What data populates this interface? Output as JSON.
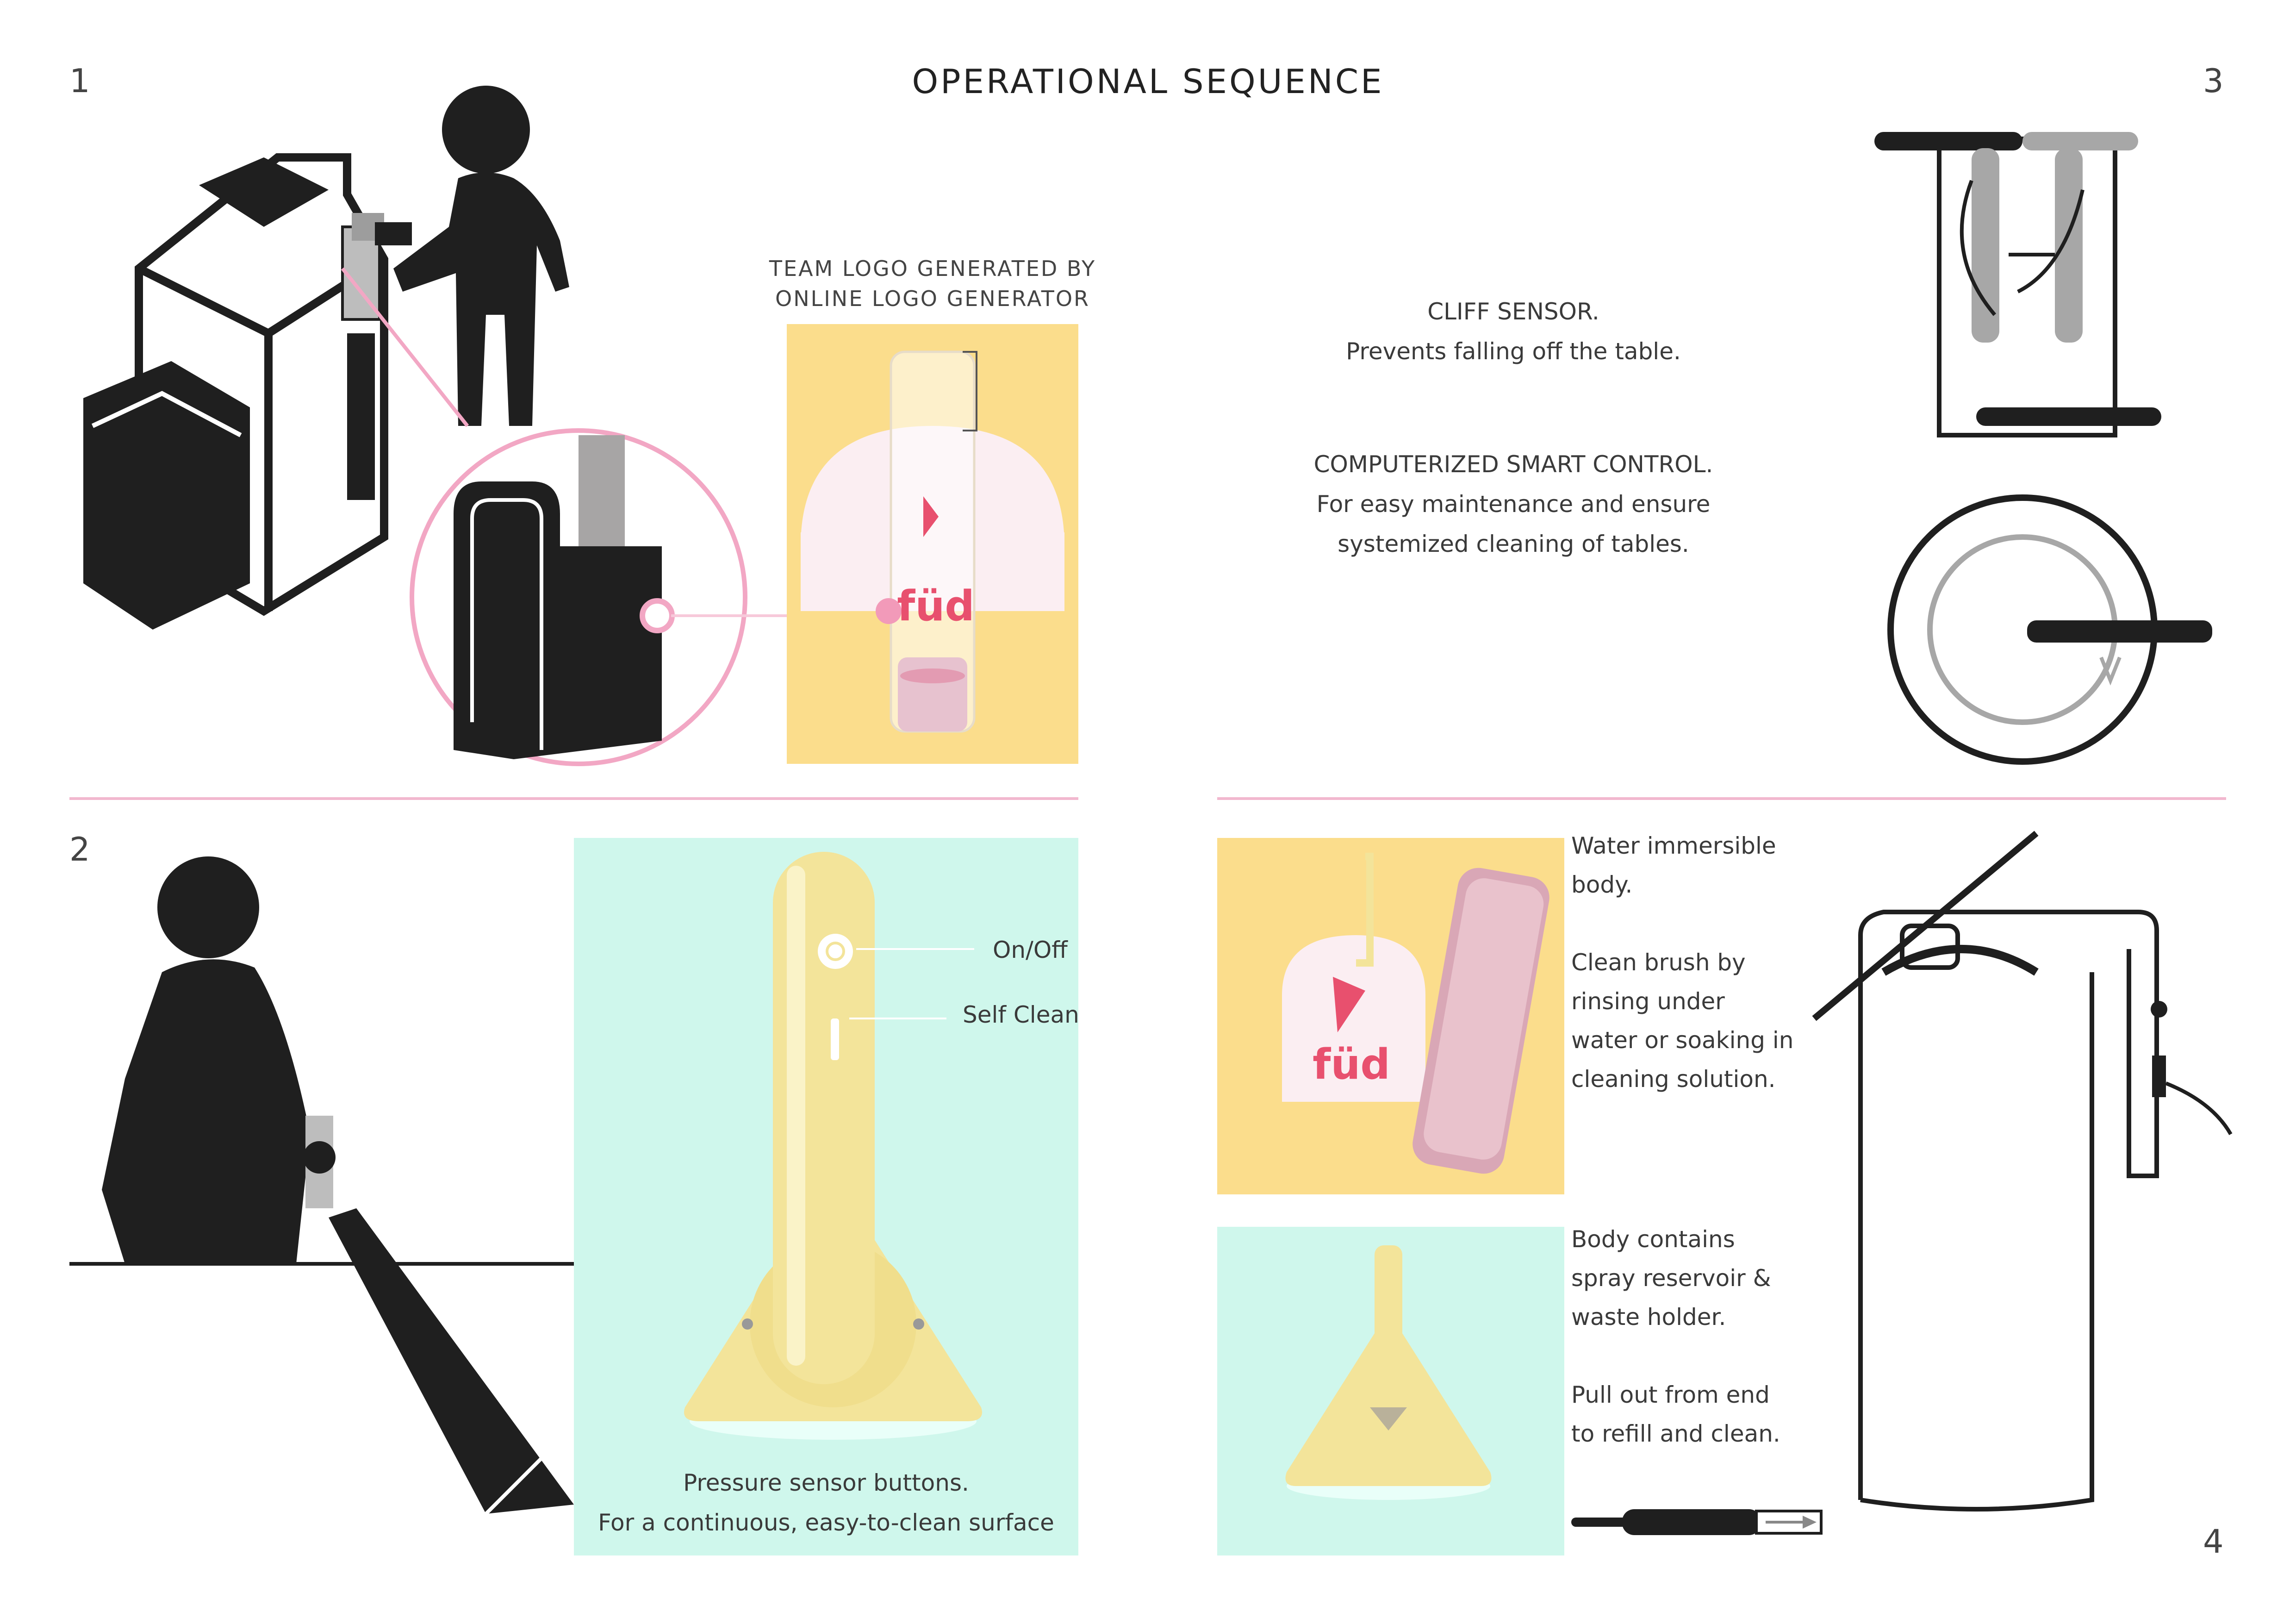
{
  "page": {
    "title": "OPERATIONAL SEQUENCE",
    "step_numbers": [
      "1",
      "2",
      "3",
      "4"
    ]
  },
  "logo_panel": {
    "caption_line1": "TEAM LOGO GENERATED BY",
    "caption_line2": "ONLINE LOGO GENERATOR",
    "brand": "füd"
  },
  "features": {
    "cliff_sensor_title": "CLIFF SENSOR.",
    "cliff_sensor_text": "Prevents falling off the table.",
    "smart_control_title": "COMPUTERIZED SMART CONTROL.",
    "smart_control_text_line1": "For easy maintenance and ensure",
    "smart_control_text_line2": "systemized cleaning of tables."
  },
  "buttons_panel": {
    "on_off_label": "On/Off",
    "self_clean_label": "Self Clean",
    "caption_line1": "Pressure sensor buttons.",
    "caption_line2": "For a continuous, easy-to-clean surface"
  },
  "maintenance": {
    "water_line1": "Water immersible",
    "water_line2": "body.",
    "clean_line1": "Clean brush by",
    "clean_line2": "rinsing under",
    "clean_line3": "water or soaking in",
    "clean_line4": "cleaning solution.",
    "body_line1": "Body contains",
    "body_line2": "spray reservoir &",
    "body_line3": "waste holder.",
    "pull_line1": "Pull out from end",
    "pull_line2": "to refill and clean."
  },
  "colors": {
    "accent_pink": "#f2b8cf",
    "panel_yellow": "#fbdd8c",
    "panel_mint": "#cff7ec",
    "product_yellow": "#f3e49a",
    "brand_red": "#e8506e",
    "ink": "#1f1f1f"
  }
}
